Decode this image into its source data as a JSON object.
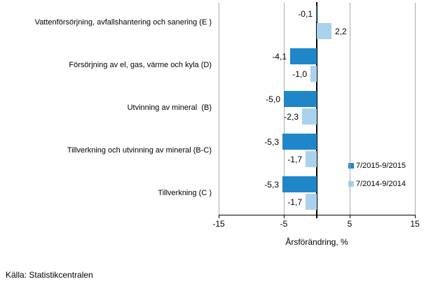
{
  "chart_data": {
    "type": "bar",
    "orientation": "horizontal",
    "title": "",
    "xlabel": "Årsförändring, %",
    "xlim": [
      -15,
      15
    ],
    "xticks": [
      -15,
      -5,
      5,
      15
    ],
    "xtick_labels": [
      "-15",
      "-5",
      "5",
      "15"
    ],
    "grid": true,
    "legend_position": "right-middle",
    "categories": [
      "Vattenförsörjning, avfallshantering och sanering (E )",
      "Försörjning av el, gas, värme och kyla (D)",
      "Utvinning av mineral  (B)",
      "Tillverkning och utvinning av mineral (B-C)",
      "Tillverkning (C )"
    ],
    "series": [
      {
        "name": "7/2015-9/2015",
        "color": "#1f86c9",
        "values": [
          -0.1,
          -4.1,
          -5.0,
          -5.3,
          -5.3
        ],
        "value_labels": [
          "-0,1",
          "-4,1",
          "-5,0",
          "-5,3",
          "-5,3"
        ]
      },
      {
        "name": "7/2014-9/2014",
        "color": "#a9d2ee",
        "values": [
          2.2,
          -1.0,
          -2.3,
          -1.7,
          -1.7
        ],
        "value_labels": [
          "2,2",
          "-1,0",
          "-2,3",
          "-1,7",
          "-1,7"
        ]
      }
    ]
  },
  "colors": {
    "gridline": "#ababab",
    "axis": "#000000",
    "text": "#000000",
    "background": "#ffffff"
  },
  "source": "Källa: Statistikcentralen"
}
